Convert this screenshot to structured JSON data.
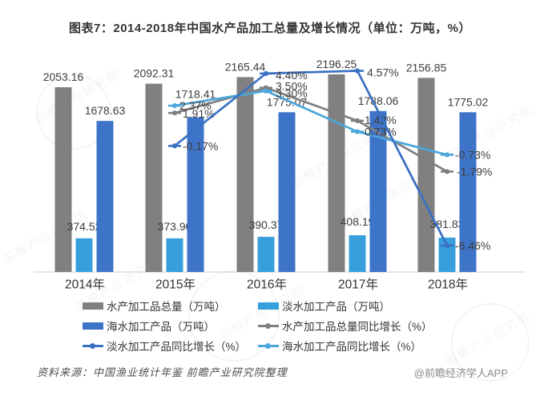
{
  "title": "图表7：2014-2018年中国水产品加工总量及增长情况（单位：万吨，%）",
  "watermark": "前瞻产业研究院",
  "footer": {
    "source": "资料来源：中国渔业统计年鉴 前瞻产业研究院整理",
    "brand": "@前瞻经济学人APP"
  },
  "chart_data": {
    "type": "bar+line combo",
    "categories": [
      "2014年",
      "2015年",
      "2016年",
      "2017年",
      "2018年"
    ],
    "value_axis_visible": false,
    "grid": false,
    "legend_position": "bottom",
    "bar_series": [
      {
        "key": "total",
        "name": "水产加工品总量（万吨）",
        "color": "#808080",
        "values": [
          2053.16,
          2092.31,
          2165.44,
          2196.25,
          2156.85
        ],
        "labels": [
          "2053.16",
          "2092.31",
          "2165.44",
          "2196.25",
          "2156.85"
        ]
      },
      {
        "key": "freshwater",
        "name": "淡水加工产品（万吨）",
        "color": "#379FDC",
        "values": [
          374.52,
          373.9,
          390.37,
          408.19,
          381.83
        ],
        "labels": [
          "374.52",
          "373.90",
          "390.37",
          "408.19",
          "381.83"
        ]
      },
      {
        "key": "seawater",
        "name": "海水加工产品（万吨）",
        "color": "#3E74C8",
        "values": [
          1678.63,
          1718.41,
          1775.07,
          1788.06,
          1775.02
        ],
        "labels": [
          "1678.63",
          "1718.41",
          "1775.07",
          "1788.06",
          "1775.02"
        ]
      }
    ],
    "line_series": [
      {
        "key": "total-growth",
        "name": "水产加工品总量同比增长（%）",
        "color": "#7F7F7F",
        "values": [
          null,
          1.91,
          3.5,
          1.42,
          -1.79
        ],
        "labels": [
          "1.91%",
          "3.50%",
          "1.42%",
          "-1.79%"
        ]
      },
      {
        "key": "freshwater-growth",
        "name": "淡水加工产品同比增长（%）",
        "color": "#3A70C2",
        "values": [
          null,
          -0.17,
          4.4,
          4.57,
          -6.46
        ],
        "labels": [
          "-0.17%",
          "4.40%",
          "4.57%",
          "-6.46%"
        ]
      },
      {
        "key": "seawater-growth",
        "name": "海水加工产品同比增长（%）",
        "color": "#4BA6DB",
        "values": [
          null,
          2.37,
          3.3,
          0.73,
          -0.73
        ],
        "labels": [
          "2.37%",
          "3.30%",
          "0.73%",
          "-0.73%"
        ]
      }
    ],
    "legend_order": [
      "total",
      "freshwater",
      "seawater",
      "total-growth",
      "freshwater-growth",
      "seawater-growth"
    ]
  }
}
